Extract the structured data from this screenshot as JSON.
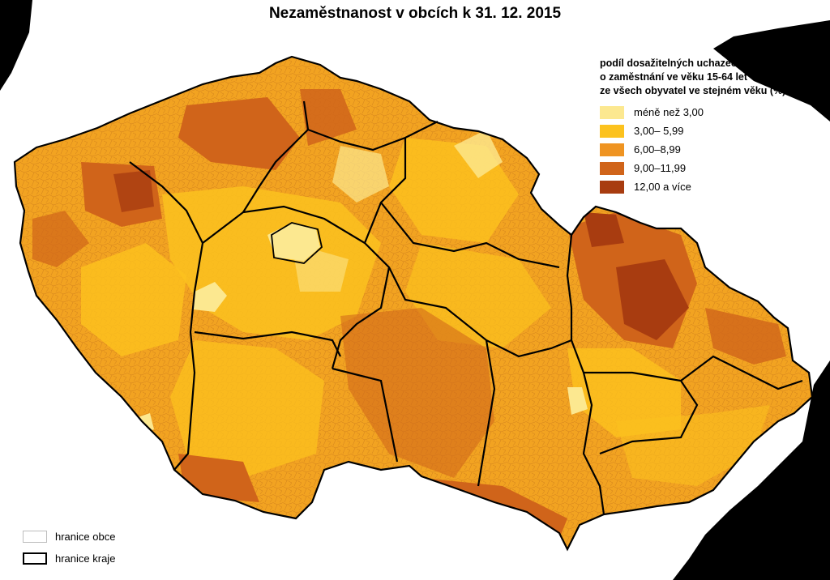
{
  "map": {
    "title": "Nezaměstnanost v obcích k 31. 12. 2015",
    "legend": {
      "title_lines": [
        "podíl dosažitelných uchazečů",
        "o zaměstnání ve věku 15-64 let",
        "ze všech obyvatel ve stejném věku (%)"
      ],
      "classes": [
        {
          "label": "méně než 3,00",
          "color": "#fce890"
        },
        {
          "label": "3,00– 5,99",
          "color": "#fcc21e"
        },
        {
          "label": "6,00–8,99",
          "color": "#ef9422"
        },
        {
          "label": "9,00–11,99",
          "color": "#d0641a"
        },
        {
          "label": "12,00 a více",
          "color": "#a83c10"
        }
      ]
    },
    "boundaries": [
      {
        "label": "hranice obce",
        "color": "#bdbdbd"
      },
      {
        "label": "hranice kraje",
        "color": "#000000"
      }
    ]
  }
}
